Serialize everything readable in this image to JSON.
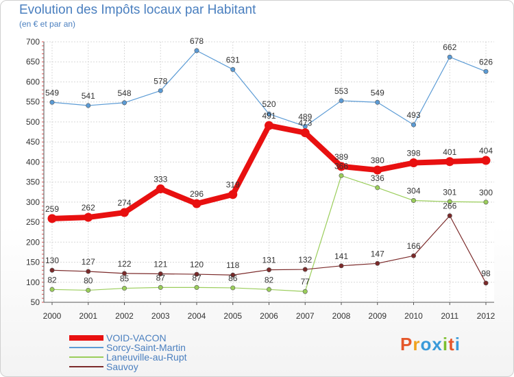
{
  "header": {
    "title": "Evolution des Impôts locaux par Habitant",
    "subtitle": "(en € et par an)"
  },
  "logo": {
    "text": "Proxiti",
    "colors": [
      "#e5572a",
      "#f0a21c",
      "#3a9ad9",
      "#3a9ad9",
      "#7cbf2e",
      "#e5572a",
      "#3a9ad9"
    ]
  },
  "chart_data": {
    "type": "line",
    "x": [
      2000,
      2001,
      2002,
      2003,
      2004,
      2005,
      2006,
      2007,
      2008,
      2009,
      2010,
      2011,
      2012
    ],
    "ylim": [
      50,
      700
    ],
    "yticks": [
      50,
      100,
      150,
      200,
      250,
      300,
      350,
      400,
      450,
      500,
      550,
      600,
      650,
      700
    ],
    "grid": true,
    "legend_position": "bottom-left",
    "series": [
      {
        "name": "VOID-VACON",
        "color": "#e81010",
        "values": [
          259,
          262,
          274,
          333,
          296,
          319,
          491,
          473,
          389,
          380,
          398,
          401,
          404
        ]
      },
      {
        "name": "Sorcy-Saint-Martin",
        "color": "#5b9bd5",
        "values": [
          549,
          541,
          548,
          578,
          678,
          631,
          520,
          489,
          553,
          549,
          493,
          662,
          626
        ]
      },
      {
        "name": "Laneuville-au-Rupt",
        "color": "#9acd5a",
        "values": [
          82,
          80,
          85,
          87,
          87,
          86,
          82,
          77,
          366,
          336,
          304,
          301,
          300
        ]
      },
      {
        "name": "Sauvoy",
        "color": "#7b2a2a",
        "values": [
          130,
          127,
          122,
          121,
          120,
          118,
          131,
          132,
          141,
          147,
          166,
          266,
          98
        ]
      }
    ]
  }
}
